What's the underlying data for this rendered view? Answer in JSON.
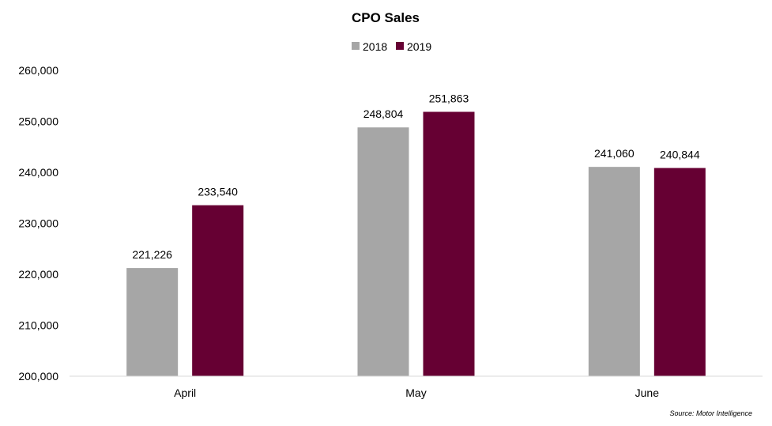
{
  "chart_data": {
    "type": "bar",
    "title": "CPO Sales",
    "categories": [
      "April",
      "May",
      "June"
    ],
    "series": [
      {
        "name": "2018",
        "color": "#a6a6a6",
        "values": [
          221226,
          248804,
          241060
        ],
        "labels": [
          "221,226",
          "248,804",
          "241,060"
        ]
      },
      {
        "name": "2019",
        "color": "#660033",
        "values": [
          233540,
          251863,
          240844
        ],
        "labels": [
          "233,540",
          "251,863",
          "240,844"
        ]
      }
    ],
    "ylim": [
      200000,
      260000
    ],
    "yticks": [
      200000,
      210000,
      220000,
      230000,
      240000,
      250000,
      260000
    ],
    "ytick_labels": [
      "200,000",
      "210,000",
      "220,000",
      "230,000",
      "240,000",
      "250,000",
      "260,000"
    ],
    "xlabel": "",
    "ylabel": "",
    "grid": false,
    "legend_position": "top-center",
    "source": "Source: Motor Intelligence"
  }
}
